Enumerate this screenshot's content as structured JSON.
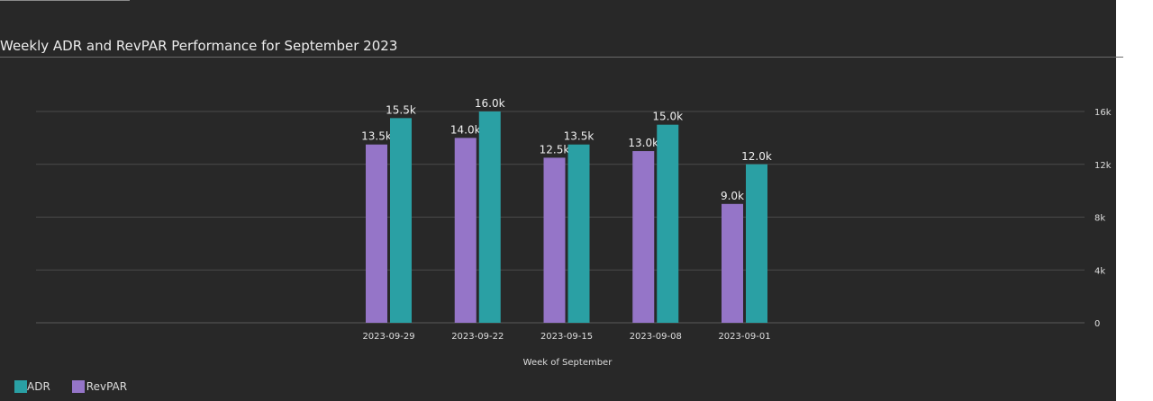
{
  "chart_data": {
    "type": "bar",
    "title": "Weekly ADR and RevPAR Performance for September 2023",
    "xlabel": "Week of September",
    "ylabel": "",
    "categories": [
      "2023-09-29",
      "2023-09-22",
      "2023-09-15",
      "2023-09-08",
      "2023-09-01"
    ],
    "series": [
      {
        "name": "RevPAR",
        "color": "#9575c8",
        "values": [
          13500,
          14000,
          12500,
          13000,
          9000
        ],
        "labels": [
          "13.5k",
          "14.0k",
          "12.5k",
          "13.0k",
          "9.0k"
        ]
      },
      {
        "name": "ADR",
        "color": "#2aa0a4",
        "values": [
          15500,
          16000,
          13500,
          15000,
          12000
        ],
        "labels": [
          "15.5k",
          "16.0k",
          "13.5k",
          "15.0k",
          "12.0k"
        ]
      }
    ],
    "ylim": [
      0,
      16000
    ],
    "y_ticks": [
      0,
      4000,
      8000,
      12000,
      16000
    ],
    "y_tick_labels": [
      "0",
      "4k",
      "8k",
      "12k",
      "16k"
    ],
    "y_axis_side": "right",
    "grid": true,
    "legend": {
      "placement": "bottom-left",
      "entries": [
        {
          "name": "ADR",
          "color": "#2aa0a4"
        },
        {
          "name": "RevPAR",
          "color": "#9575c8"
        }
      ]
    }
  }
}
